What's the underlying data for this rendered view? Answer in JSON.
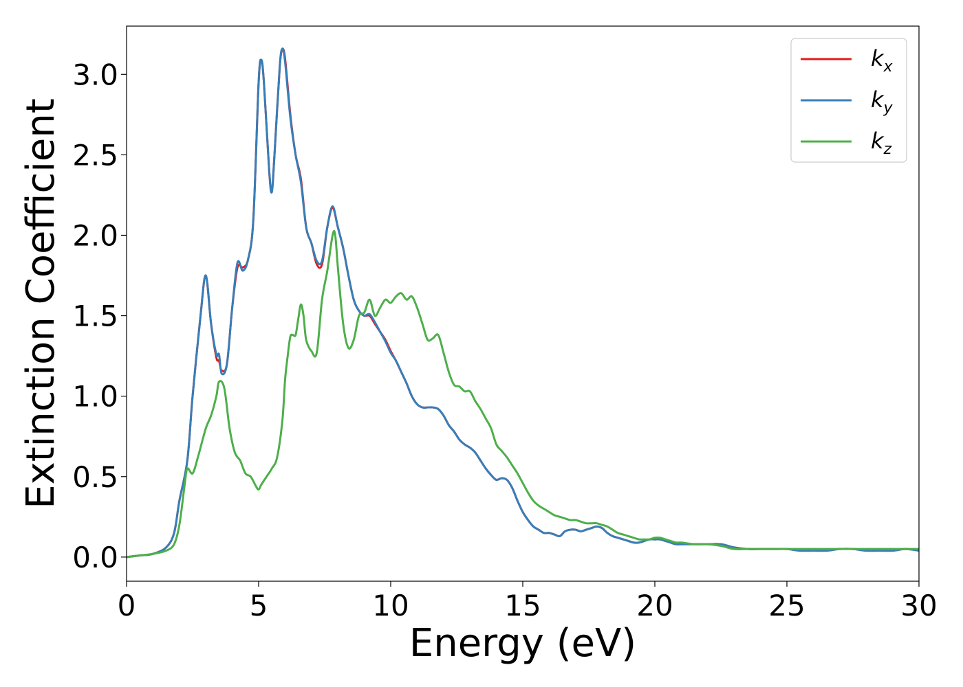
{
  "chart_data": {
    "type": "line",
    "xlabel": "Energy (eV)",
    "ylabel": "Extinction Coefficient",
    "xlim": [
      0,
      30
    ],
    "ylim": [
      -0.15,
      3.3
    ],
    "x_ticks": [
      0,
      5,
      10,
      15,
      20,
      25,
      30
    ],
    "y_ticks": [
      0.0,
      0.5,
      1.0,
      1.5,
      2.0,
      2.5,
      3.0
    ],
    "x_tick_labels": [
      "0",
      "5",
      "10",
      "15",
      "20",
      "25",
      "30"
    ],
    "y_tick_labels": [
      "0.0",
      "0.5",
      "1.0",
      "1.5",
      "2.0",
      "2.5",
      "3.0"
    ],
    "grid": false,
    "legend_position": "top-right",
    "series": [
      {
        "name": "k_x",
        "legend_base": "k",
        "legend_sub": "x",
        "color": "#e41a1c",
        "x": [
          0,
          0.5,
          1.0,
          1.5,
          1.8,
          2.0,
          2.3,
          2.5,
          2.8,
          3.0,
          3.2,
          3.4,
          3.5,
          3.6,
          3.8,
          4.0,
          4.2,
          4.4,
          4.6,
          4.8,
          5.0,
          5.1,
          5.2,
          5.4,
          5.5,
          5.6,
          5.8,
          5.9,
          6.0,
          6.2,
          6.4,
          6.6,
          6.8,
          7.0,
          7.2,
          7.4,
          7.6,
          7.8,
          8.0,
          8.2,
          8.4,
          8.6,
          8.8,
          9.0,
          9.2,
          9.4,
          9.6,
          9.8,
          10.0,
          10.2,
          10.4,
          10.6,
          10.8,
          11.0,
          11.2,
          11.4,
          11.6,
          11.8,
          12.0,
          12.2,
          12.4,
          12.6,
          12.8,
          13.0,
          13.2,
          13.4,
          13.6,
          13.8,
          14.0,
          14.2,
          14.4,
          14.6,
          14.8,
          15.0,
          15.2,
          15.4,
          15.6,
          15.8,
          16.0,
          16.2,
          16.4,
          16.6,
          16.8,
          17.0,
          17.2,
          17.4,
          17.6,
          17.8,
          18.0,
          18.2,
          18.4,
          18.6,
          18.8,
          19.0,
          19.2,
          19.4,
          19.6,
          19.8,
          20.0,
          20.2,
          20.4,
          20.6,
          20.8,
          21.0,
          21.5,
          22.0,
          22.5,
          23.0,
          23.5,
          24.0,
          24.5,
          25.0,
          25.5,
          26.0,
          26.5,
          27.0,
          27.5,
          28.0,
          28.5,
          29.0,
          29.5,
          30.0
        ],
        "y": [
          0.0,
          0.01,
          0.02,
          0.06,
          0.15,
          0.35,
          0.6,
          1.0,
          1.5,
          1.75,
          1.45,
          1.24,
          1.22,
          1.16,
          1.2,
          1.55,
          1.8,
          1.8,
          1.85,
          2.1,
          2.95,
          3.08,
          2.95,
          2.4,
          2.27,
          2.5,
          3.05,
          3.15,
          3.1,
          2.75,
          2.5,
          2.35,
          2.05,
          1.95,
          1.82,
          1.82,
          2.05,
          2.17,
          2.05,
          1.92,
          1.75,
          1.6,
          1.53,
          1.5,
          1.5,
          1.45,
          1.4,
          1.35,
          1.28,
          1.22,
          1.15,
          1.08,
          1.0,
          0.95,
          0.93,
          0.93,
          0.93,
          0.92,
          0.88,
          0.82,
          0.78,
          0.73,
          0.7,
          0.68,
          0.65,
          0.6,
          0.55,
          0.51,
          0.48,
          0.49,
          0.48,
          0.43,
          0.35,
          0.28,
          0.23,
          0.19,
          0.17,
          0.15,
          0.15,
          0.14,
          0.13,
          0.16,
          0.17,
          0.17,
          0.16,
          0.17,
          0.18,
          0.19,
          0.18,
          0.15,
          0.13,
          0.12,
          0.11,
          0.1,
          0.09,
          0.09,
          0.1,
          0.11,
          0.11,
          0.11,
          0.1,
          0.09,
          0.08,
          0.08,
          0.08,
          0.08,
          0.08,
          0.06,
          0.05,
          0.05,
          0.05,
          0.05,
          0.04,
          0.04,
          0.04,
          0.05,
          0.05,
          0.04,
          0.04,
          0.04,
          0.05,
          0.04
        ]
      },
      {
        "name": "k_y",
        "legend_base": "k",
        "legend_sub": "y",
        "color": "#377eb8",
        "x": [
          0,
          0.5,
          1.0,
          1.5,
          1.8,
          2.0,
          2.3,
          2.5,
          2.8,
          3.0,
          3.2,
          3.4,
          3.5,
          3.6,
          3.8,
          4.0,
          4.2,
          4.4,
          4.6,
          4.8,
          5.0,
          5.1,
          5.2,
          5.4,
          5.5,
          5.6,
          5.8,
          5.9,
          6.0,
          6.2,
          6.4,
          6.6,
          6.8,
          7.0,
          7.2,
          7.4,
          7.6,
          7.8,
          8.0,
          8.2,
          8.4,
          8.6,
          8.8,
          9.0,
          9.2,
          9.4,
          9.6,
          9.8,
          10.0,
          10.2,
          10.4,
          10.6,
          10.8,
          11.0,
          11.2,
          11.4,
          11.6,
          11.8,
          12.0,
          12.2,
          12.4,
          12.6,
          12.8,
          13.0,
          13.2,
          13.4,
          13.6,
          13.8,
          14.0,
          14.2,
          14.4,
          14.6,
          14.8,
          15.0,
          15.2,
          15.4,
          15.6,
          15.8,
          16.0,
          16.2,
          16.4,
          16.6,
          16.8,
          17.0,
          17.2,
          17.4,
          17.6,
          17.8,
          18.0,
          18.2,
          18.4,
          18.6,
          18.8,
          19.0,
          19.2,
          19.4,
          19.6,
          19.8,
          20.0,
          20.2,
          20.4,
          20.6,
          20.8,
          21.0,
          21.5,
          22.0,
          22.5,
          23.0,
          23.5,
          24.0,
          24.5,
          25.0,
          25.5,
          26.0,
          26.5,
          27.0,
          27.5,
          28.0,
          28.5,
          29.0,
          29.5,
          30.0
        ],
        "y": [
          0.0,
          0.01,
          0.02,
          0.06,
          0.15,
          0.35,
          0.6,
          1.0,
          1.5,
          1.75,
          1.45,
          1.26,
          1.26,
          1.14,
          1.2,
          1.55,
          1.83,
          1.78,
          1.85,
          2.1,
          2.95,
          3.09,
          2.95,
          2.4,
          2.27,
          2.5,
          3.05,
          3.16,
          3.08,
          2.73,
          2.5,
          2.33,
          2.05,
          1.95,
          1.84,
          1.84,
          2.05,
          2.18,
          2.05,
          1.92,
          1.75,
          1.6,
          1.53,
          1.5,
          1.51,
          1.46,
          1.4,
          1.34,
          1.27,
          1.22,
          1.15,
          1.08,
          1.0,
          0.95,
          0.93,
          0.93,
          0.93,
          0.92,
          0.88,
          0.82,
          0.78,
          0.73,
          0.7,
          0.68,
          0.65,
          0.6,
          0.55,
          0.51,
          0.48,
          0.49,
          0.48,
          0.43,
          0.35,
          0.28,
          0.23,
          0.19,
          0.17,
          0.15,
          0.15,
          0.14,
          0.13,
          0.16,
          0.17,
          0.17,
          0.16,
          0.17,
          0.18,
          0.19,
          0.18,
          0.15,
          0.13,
          0.12,
          0.11,
          0.1,
          0.09,
          0.09,
          0.1,
          0.11,
          0.11,
          0.11,
          0.1,
          0.09,
          0.08,
          0.08,
          0.08,
          0.08,
          0.08,
          0.06,
          0.05,
          0.05,
          0.05,
          0.05,
          0.04,
          0.04,
          0.04,
          0.05,
          0.05,
          0.04,
          0.04,
          0.04,
          0.05,
          0.04
        ]
      },
      {
        "name": "k_z",
        "legend_base": "k",
        "legend_sub": "z",
        "color": "#4daf4a",
        "x": [
          0,
          0.5,
          1.0,
          1.5,
          1.8,
          2.0,
          2.2,
          2.3,
          2.5,
          2.7,
          3.0,
          3.2,
          3.4,
          3.5,
          3.7,
          3.9,
          4.1,
          4.3,
          4.5,
          4.7,
          4.9,
          5.0,
          5.1,
          5.3,
          5.5,
          5.7,
          5.9,
          6.0,
          6.1,
          6.2,
          6.3,
          6.4,
          6.5,
          6.6,
          6.7,
          6.8,
          7.0,
          7.2,
          7.4,
          7.6,
          7.8,
          7.9,
          8.0,
          8.2,
          8.4,
          8.6,
          8.8,
          9.0,
          9.2,
          9.4,
          9.6,
          9.8,
          10.0,
          10.2,
          10.4,
          10.6,
          10.8,
          11.0,
          11.2,
          11.4,
          11.6,
          11.8,
          12.0,
          12.2,
          12.4,
          12.6,
          12.8,
          13.0,
          13.2,
          13.4,
          13.6,
          13.8,
          14.0,
          14.2,
          14.4,
          14.6,
          14.8,
          15.0,
          15.2,
          15.4,
          15.6,
          15.8,
          16.0,
          16.2,
          16.4,
          16.6,
          16.8,
          17.0,
          17.2,
          17.4,
          17.6,
          17.8,
          18.0,
          18.2,
          18.4,
          18.6,
          18.8,
          19.0,
          19.2,
          19.4,
          19.6,
          19.8,
          20.0,
          20.2,
          20.4,
          20.6,
          20.8,
          21.0,
          21.5,
          22.0,
          22.5,
          23.0,
          23.5,
          24.0,
          24.5,
          25.0,
          25.5,
          26.0,
          26.5,
          27.0,
          27.5,
          28.0,
          28.5,
          29.0,
          29.5,
          30.0
        ],
        "y": [
          0.0,
          0.01,
          0.02,
          0.04,
          0.08,
          0.2,
          0.45,
          0.55,
          0.52,
          0.62,
          0.8,
          0.88,
          1.0,
          1.09,
          1.05,
          0.8,
          0.65,
          0.6,
          0.52,
          0.5,
          0.44,
          0.42,
          0.45,
          0.5,
          0.55,
          0.62,
          0.85,
          1.1,
          1.25,
          1.37,
          1.38,
          1.38,
          1.48,
          1.57,
          1.5,
          1.35,
          1.28,
          1.27,
          1.6,
          1.78,
          2.0,
          2.0,
          1.8,
          1.45,
          1.3,
          1.35,
          1.5,
          1.52,
          1.6,
          1.5,
          1.55,
          1.6,
          1.58,
          1.62,
          1.64,
          1.6,
          1.62,
          1.55,
          1.45,
          1.35,
          1.36,
          1.38,
          1.27,
          1.15,
          1.07,
          1.06,
          1.03,
          1.03,
          0.97,
          0.92,
          0.86,
          0.8,
          0.7,
          0.66,
          0.62,
          0.57,
          0.52,
          0.46,
          0.4,
          0.35,
          0.32,
          0.3,
          0.28,
          0.26,
          0.25,
          0.24,
          0.23,
          0.23,
          0.22,
          0.21,
          0.21,
          0.21,
          0.2,
          0.19,
          0.17,
          0.15,
          0.14,
          0.13,
          0.12,
          0.11,
          0.11,
          0.11,
          0.12,
          0.12,
          0.11,
          0.1,
          0.09,
          0.09,
          0.08,
          0.08,
          0.07,
          0.05,
          0.05,
          0.05,
          0.05,
          0.05,
          0.05,
          0.05,
          0.05,
          0.05,
          0.05,
          0.05,
          0.05,
          0.05,
          0.05,
          0.05
        ]
      }
    ]
  }
}
